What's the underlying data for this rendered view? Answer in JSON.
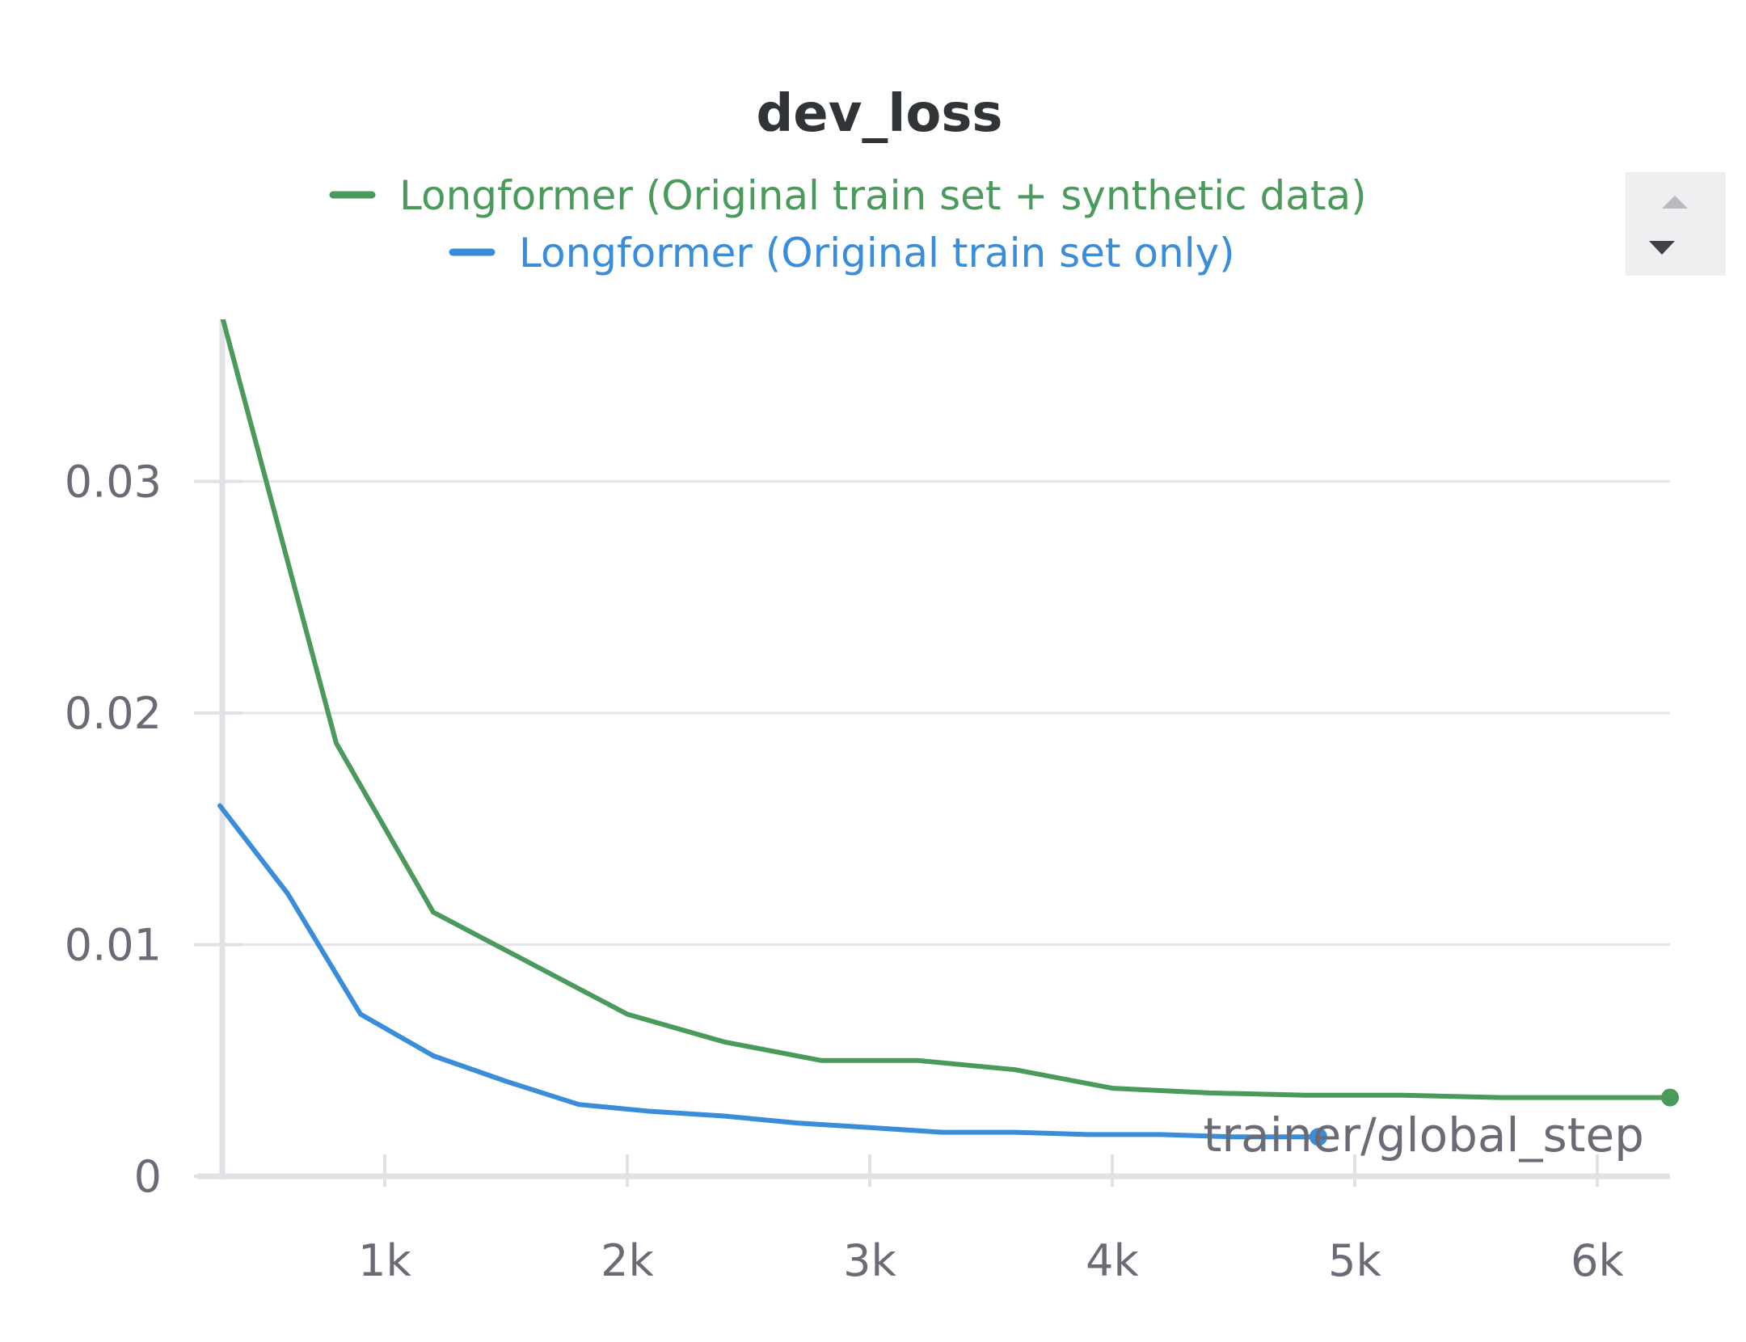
{
  "chart_data": {
    "type": "line",
    "title": "dev_loss",
    "xlabel": "trainer/global_step",
    "ylabel": "",
    "xlim": [
      320,
      6300
    ],
    "ylim": [
      0,
      0.037
    ],
    "x_ticks": [
      1000,
      2000,
      3000,
      4000,
      5000,
      6000
    ],
    "x_tick_labels": [
      "1k",
      "2k",
      "3k",
      "4k",
      "5k",
      "6k"
    ],
    "y_ticks": [
      0,
      0.01,
      0.02,
      0.03
    ],
    "y_tick_labels": [
      "0",
      "0.01",
      "0.02",
      "0.03"
    ],
    "grid": true,
    "legend_position": "top-center",
    "series": [
      {
        "name": "Longformer (Original train set + synthetic data)",
        "color": "#4a9a5c",
        "x": [
          320,
          800,
          1200,
          1600,
          2000,
          2400,
          2800,
          3200,
          3600,
          4000,
          4400,
          4800,
          5200,
          5600,
          6000,
          6300
        ],
        "y": [
          0.0375,
          0.0187,
          0.0114,
          0.0092,
          0.007,
          0.0058,
          0.005,
          0.005,
          0.0046,
          0.0038,
          0.0036,
          0.0035,
          0.0035,
          0.0034,
          0.0034,
          0.0034
        ],
        "end_marker": true
      },
      {
        "name": "Longformer (Original train set only)",
        "color": "#3a8ddb",
        "x": [
          320,
          600,
          900,
          1200,
          1500,
          1800,
          2100,
          2400,
          2700,
          3000,
          3300,
          3600,
          3900,
          4200,
          4500,
          4850
        ],
        "y": [
          0.016,
          0.0122,
          0.007,
          0.0052,
          0.0041,
          0.0031,
          0.0028,
          0.0026,
          0.0023,
          0.0021,
          0.0019,
          0.0019,
          0.0018,
          0.0018,
          0.0017,
          0.0017
        ],
        "end_marker": true
      }
    ]
  },
  "legend_scroll": {
    "up_icon": "triangle-up-icon",
    "down_icon": "triangle-down-icon"
  }
}
